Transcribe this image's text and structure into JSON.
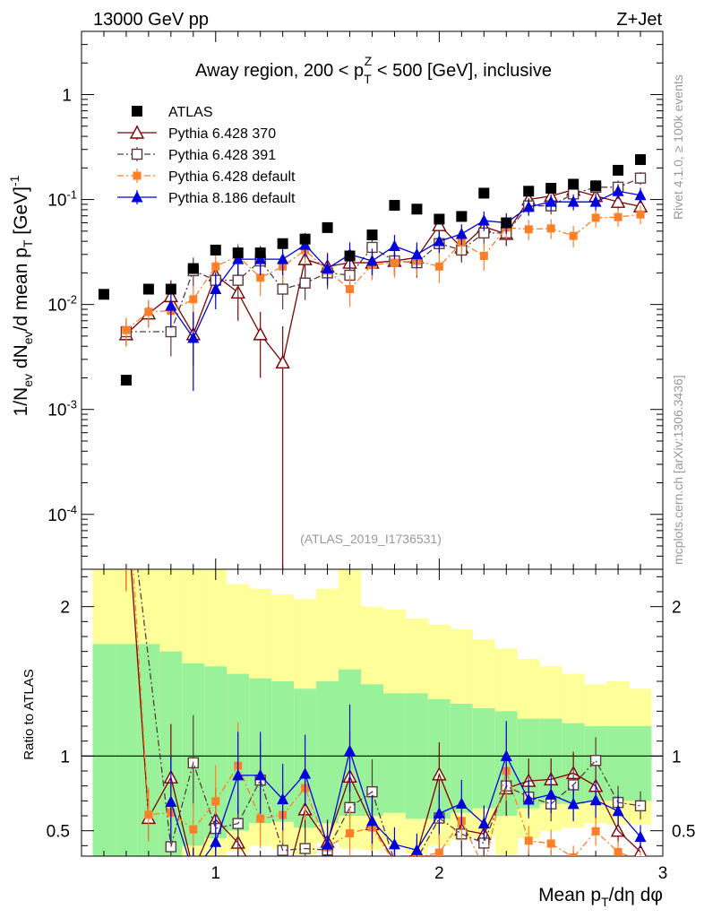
{
  "header": {
    "left_title": "13000 GeV pp",
    "right_title": "Z+Jet",
    "plot_title_main": "Away region, 200 < p",
    "plot_title_sub": "T",
    "plot_title_sup": "Z",
    "plot_title_tail": " < 500 [GeV], inclusive",
    "analysis_id": "(ATLAS_2019_I1736531)"
  },
  "side_labels": {
    "rivet": "Rivet 4.1.0, ≥ 100k events",
    "mcplots": "mcplots.cern.ch [arXiv:1306.3436]"
  },
  "colors": {
    "atlas": "#000000",
    "py6_370": "#800000",
    "py6_391": "#5a3a42",
    "py6_def": "#ff7f27",
    "py8_def": "#0000dd",
    "band_inner": "#99f299",
    "band_outer": "#ffff99"
  },
  "chart_data": {
    "type": "scatter",
    "title": "Away region, 200 < p_T^Z < 500 [GeV], inclusive",
    "xlabel": "Mean p_T/dη dφ",
    "ylabel_main": "1/N_ev dN_ev/d mean p_T [GeV]^-1",
    "ylabel_ratio": "Ratio to ATLAS",
    "xlim": [
      0.4,
      3.0
    ],
    "ylim_main": [
      3e-05,
      4.0
    ],
    "ylim_ratio": [
      0.33,
      2.25
    ],
    "yscale_main": "log",
    "x_ticks": [
      "1",
      "2",
      "3"
    ],
    "y_ticks_main": [
      "10^-4",
      "10^-3",
      "10^-2",
      "10^-1",
      "1"
    ],
    "y_ticks_ratio": [
      "0.5",
      "1",
      "2"
    ],
    "legend_position": "top-left",
    "series": [
      {
        "name": "ATLAS",
        "marker": "square-filled",
        "color_key": "atlas",
        "points": [
          {
            "x": 0.5,
            "y": 0.0125
          },
          {
            "x": 0.6,
            "y": 0.0019
          },
          {
            "x": 0.7,
            "y": 0.014
          },
          {
            "x": 0.8,
            "y": 0.014
          },
          {
            "x": 0.9,
            "y": 0.022
          },
          {
            "x": 1.0,
            "y": 0.033
          },
          {
            "x": 1.1,
            "y": 0.031
          },
          {
            "x": 1.2,
            "y": 0.031
          },
          {
            "x": 1.3,
            "y": 0.038
          },
          {
            "x": 1.4,
            "y": 0.042
          },
          {
            "x": 1.5,
            "y": 0.054
          },
          {
            "x": 1.6,
            "y": 0.029
          },
          {
            "x": 1.7,
            "y": 0.046
          },
          {
            "x": 1.8,
            "y": 0.088
          },
          {
            "x": 1.9,
            "y": 0.081
          },
          {
            "x": 2.0,
            "y": 0.065
          },
          {
            "x": 2.1,
            "y": 0.069
          },
          {
            "x": 2.2,
            "y": 0.115
          },
          {
            "x": 2.3,
            "y": 0.06
          },
          {
            "x": 2.4,
            "y": 0.12
          },
          {
            "x": 2.5,
            "y": 0.128
          },
          {
            "x": 2.6,
            "y": 0.14
          },
          {
            "x": 2.7,
            "y": 0.135
          },
          {
            "x": 2.8,
            "y": 0.19
          },
          {
            "x": 2.9,
            "y": 0.24
          }
        ]
      },
      {
        "name": "Pythia 6.428 370",
        "marker": "triangle-open",
        "line": "solid",
        "color_key": "py6_370",
        "points": [
          {
            "x": 0.6,
            "y": 0.0052,
            "lo": 0.004,
            "hi": 0.0068
          },
          {
            "x": 0.7,
            "y": 0.0082,
            "lo": 0.006,
            "hi": 0.011
          },
          {
            "x": 0.8,
            "y": 0.012,
            "lo": 0.008,
            "hi": 0.017
          },
          {
            "x": 0.9,
            "y": 0.0052,
            "lo": 0.0026,
            "hi": 0.0085
          },
          {
            "x": 1.0,
            "y": 0.019,
            "lo": 0.013,
            "hi": 0.026
          },
          {
            "x": 1.1,
            "y": 0.013,
            "lo": 0.007,
            "hi": 0.02
          },
          {
            "x": 1.2,
            "y": 0.0052,
            "lo": 0.002,
            "hi": 0.0085
          },
          {
            "x": 1.3,
            "y": 0.0028,
            "lo": 3e-05,
            "hi": 0.0062
          },
          {
            "x": 1.4,
            "y": 0.027,
            "lo": 0.018,
            "hi": 0.036
          },
          {
            "x": 1.5,
            "y": 0.023,
            "lo": 0.016,
            "hi": 0.031
          },
          {
            "x": 1.6,
            "y": 0.025,
            "lo": 0.018,
            "hi": 0.034
          },
          {
            "x": 1.7,
            "y": 0.025,
            "lo": 0.018,
            "hi": 0.034
          },
          {
            "x": 1.8,
            "y": 0.026,
            "lo": 0.019,
            "hi": 0.034
          },
          {
            "x": 1.9,
            "y": 0.028,
            "lo": 0.02,
            "hi": 0.036
          },
          {
            "x": 2.0,
            "y": 0.057,
            "lo": 0.044,
            "hi": 0.071
          },
          {
            "x": 2.1,
            "y": 0.035,
            "lo": 0.026,
            "hi": 0.045
          },
          {
            "x": 2.2,
            "y": 0.055,
            "lo": 0.043,
            "hi": 0.068
          },
          {
            "x": 2.3,
            "y": 0.047,
            "lo": 0.036,
            "hi": 0.058
          },
          {
            "x": 2.4,
            "y": 0.1,
            "lo": 0.083,
            "hi": 0.118
          },
          {
            "x": 2.5,
            "y": 0.108,
            "lo": 0.09,
            "hi": 0.126
          },
          {
            "x": 2.6,
            "y": 0.124,
            "lo": 0.104,
            "hi": 0.144
          },
          {
            "x": 2.7,
            "y": 0.108,
            "lo": 0.09,
            "hi": 0.126
          },
          {
            "x": 2.8,
            "y": 0.095,
            "lo": 0.079,
            "hi": 0.112
          },
          {
            "x": 2.9,
            "y": 0.086,
            "lo": 0.07,
            "hi": 0.103
          }
        ]
      },
      {
        "name": "Pythia 6.428 391",
        "marker": "square-open",
        "line": "dashdot",
        "color_key": "py6_391",
        "points": [
          {
            "x": 0.6,
            "y": 0.0055,
            "lo": 0.004,
            "hi": 0.0072
          },
          {
            "x": 0.8,
            "y": 0.0055,
            "lo": 0.0032,
            "hi": 0.008
          },
          {
            "x": 0.9,
            "y": 0.021,
            "lo": 0.015,
            "hi": 0.028
          },
          {
            "x": 1.0,
            "y": 0.017,
            "lo": 0.012,
            "hi": 0.023
          },
          {
            "x": 1.1,
            "y": 0.017,
            "lo": 0.011,
            "hi": 0.024
          },
          {
            "x": 1.2,
            "y": 0.026,
            "lo": 0.019,
            "hi": 0.034
          },
          {
            "x": 1.3,
            "y": 0.014,
            "lo": 0.009,
            "hi": 0.02
          },
          {
            "x": 1.4,
            "y": 0.016,
            "lo": 0.011,
            "hi": 0.022
          },
          {
            "x": 1.5,
            "y": 0.02,
            "lo": 0.014,
            "hi": 0.027
          },
          {
            "x": 1.6,
            "y": 0.019,
            "lo": 0.013,
            "hi": 0.026
          },
          {
            "x": 1.7,
            "y": 0.035,
            "lo": 0.026,
            "hi": 0.045
          },
          {
            "x": 1.8,
            "y": 0.026,
            "lo": 0.019,
            "hi": 0.034
          },
          {
            "x": 1.9,
            "y": 0.025,
            "lo": 0.018,
            "hi": 0.033
          },
          {
            "x": 2.0,
            "y": 0.038,
            "lo": 0.029,
            "hi": 0.048
          },
          {
            "x": 2.1,
            "y": 0.033,
            "lo": 0.025,
            "hi": 0.042
          },
          {
            "x": 2.2,
            "y": 0.048,
            "lo": 0.037,
            "hi": 0.06
          },
          {
            "x": 2.3,
            "y": 0.048,
            "lo": 0.037,
            "hi": 0.06
          },
          {
            "x": 2.4,
            "y": 0.087,
            "lo": 0.072,
            "hi": 0.103
          },
          {
            "x": 2.5,
            "y": 0.087,
            "lo": 0.072,
            "hi": 0.103
          },
          {
            "x": 2.6,
            "y": 0.113,
            "lo": 0.095,
            "hi": 0.132
          },
          {
            "x": 2.7,
            "y": 0.131,
            "lo": 0.111,
            "hi": 0.152
          },
          {
            "x": 2.8,
            "y": 0.131,
            "lo": 0.111,
            "hi": 0.152
          },
          {
            "x": 2.9,
            "y": 0.16,
            "lo": 0.138,
            "hi": 0.183
          }
        ]
      },
      {
        "name": "Pythia 6.428 default",
        "marker": "square-filled-small",
        "line": "dashdot",
        "color_key": "py6_def",
        "points": [
          {
            "x": 0.6,
            "y": 0.0057,
            "lo": 0.004,
            "hi": 0.0075
          },
          {
            "x": 0.7,
            "y": 0.0085,
            "lo": 0.006,
            "hi": 0.011
          },
          {
            "x": 0.8,
            "y": 0.0087,
            "lo": 0.006,
            "hi": 0.012
          },
          {
            "x": 0.9,
            "y": 0.0112,
            "lo": 0.008,
            "hi": 0.015
          },
          {
            "x": 1.0,
            "y": 0.023,
            "lo": 0.016,
            "hi": 0.031
          },
          {
            "x": 1.1,
            "y": 0.029,
            "lo": 0.021,
            "hi": 0.038
          },
          {
            "x": 1.2,
            "y": 0.018,
            "lo": 0.012,
            "hi": 0.025
          },
          {
            "x": 1.3,
            "y": 0.023,
            "lo": 0.016,
            "hi": 0.031
          },
          {
            "x": 1.4,
            "y": 0.033,
            "lo": 0.024,
            "hi": 0.043
          },
          {
            "x": 1.5,
            "y": 0.021,
            "lo": 0.015,
            "hi": 0.028
          },
          {
            "x": 1.6,
            "y": 0.014,
            "lo": 0.0095,
            "hi": 0.019
          },
          {
            "x": 1.7,
            "y": 0.024,
            "lo": 0.017,
            "hi": 0.032
          },
          {
            "x": 1.8,
            "y": 0.025,
            "lo": 0.018,
            "hi": 0.033
          },
          {
            "x": 1.9,
            "y": 0.026,
            "lo": 0.019,
            "hi": 0.034
          },
          {
            "x": 2.0,
            "y": 0.023,
            "lo": 0.016,
            "hi": 0.031
          },
          {
            "x": 2.1,
            "y": 0.039,
            "lo": 0.03,
            "hi": 0.049
          },
          {
            "x": 2.2,
            "y": 0.029,
            "lo": 0.021,
            "hi": 0.038
          },
          {
            "x": 2.3,
            "y": 0.054,
            "lo": 0.042,
            "hi": 0.067
          },
          {
            "x": 2.4,
            "y": 0.052,
            "lo": 0.041,
            "hi": 0.064
          },
          {
            "x": 2.5,
            "y": 0.053,
            "lo": 0.042,
            "hi": 0.065
          },
          {
            "x": 2.6,
            "y": 0.045,
            "lo": 0.035,
            "hi": 0.056
          },
          {
            "x": 2.7,
            "y": 0.067,
            "lo": 0.054,
            "hi": 0.081
          },
          {
            "x": 2.8,
            "y": 0.068,
            "lo": 0.055,
            "hi": 0.082
          },
          {
            "x": 2.9,
            "y": 0.072,
            "lo": 0.058,
            "hi": 0.087
          }
        ]
      },
      {
        "name": "Pythia 8.186 default",
        "marker": "triangle-filled",
        "line": "solid",
        "color_key": "py8_def",
        "points": [
          {
            "x": 0.8,
            "y": 0.0097,
            "lo": 0.006,
            "hi": 0.014
          },
          {
            "x": 0.9,
            "y": 0.0048,
            "lo": 0.0015,
            "hi": 0.0085
          },
          {
            "x": 1.0,
            "y": 0.014,
            "lo": 0.009,
            "hi": 0.02
          },
          {
            "x": 1.1,
            "y": 0.027,
            "lo": 0.019,
            "hi": 0.036
          },
          {
            "x": 1.2,
            "y": 0.027,
            "lo": 0.019,
            "hi": 0.036
          },
          {
            "x": 1.3,
            "y": 0.027,
            "lo": 0.019,
            "hi": 0.036
          },
          {
            "x": 1.4,
            "y": 0.037,
            "lo": 0.028,
            "hi": 0.048
          },
          {
            "x": 1.5,
            "y": 0.022,
            "lo": 0.015,
            "hi": 0.03
          },
          {
            "x": 1.6,
            "y": 0.03,
            "lo": 0.022,
            "hi": 0.039
          },
          {
            "x": 1.7,
            "y": 0.026,
            "lo": 0.019,
            "hi": 0.034
          },
          {
            "x": 1.8,
            "y": 0.036,
            "lo": 0.027,
            "hi": 0.046
          },
          {
            "x": 1.9,
            "y": 0.03,
            "lo": 0.022,
            "hi": 0.039
          },
          {
            "x": 2.0,
            "y": 0.04,
            "lo": 0.031,
            "hi": 0.05
          },
          {
            "x": 2.1,
            "y": 0.047,
            "lo": 0.037,
            "hi": 0.058
          },
          {
            "x": 2.2,
            "y": 0.063,
            "lo": 0.05,
            "hi": 0.077
          },
          {
            "x": 2.3,
            "y": 0.06,
            "lo": 0.047,
            "hi": 0.074
          },
          {
            "x": 2.4,
            "y": 0.085,
            "lo": 0.07,
            "hi": 0.101
          },
          {
            "x": 2.5,
            "y": 0.095,
            "lo": 0.079,
            "hi": 0.112
          },
          {
            "x": 2.6,
            "y": 0.095,
            "lo": 0.079,
            "hi": 0.112
          },
          {
            "x": 2.7,
            "y": 0.095,
            "lo": 0.079,
            "hi": 0.112
          },
          {
            "x": 2.8,
            "y": 0.12,
            "lo": 0.101,
            "hi": 0.14
          },
          {
            "x": 2.9,
            "y": 0.11,
            "lo": 0.092,
            "hi": 0.129
          }
        ]
      }
    ],
    "ratio_band": {
      "x_edges": [
        0.45,
        0.55,
        0.65,
        0.75,
        0.85,
        0.95,
        1.05,
        1.15,
        1.25,
        1.35,
        1.45,
        1.55,
        1.65,
        1.75,
        1.85,
        1.95,
        2.05,
        2.15,
        2.25,
        2.35,
        2.45,
        2.55,
        2.65,
        2.75,
        2.85,
        2.95
      ],
      "outer_lo": [
        0.33,
        0.33,
        0.33,
        0.33,
        0.33,
        0.33,
        0.36,
        0.4,
        0.38,
        0.34,
        0.42,
        0.38,
        0.37,
        0.4,
        0.35,
        0.4,
        0.44,
        0.46,
        0.34,
        0.45,
        0.5,
        0.52,
        0.55,
        0.54,
        0.54
      ],
      "outer_hi": [
        2.25,
        2.25,
        2.25,
        2.25,
        2.25,
        2.25,
        2.15,
        2.12,
        2.08,
        2.05,
        2.12,
        2.25,
        2.0,
        1.98,
        1.92,
        1.88,
        1.85,
        1.78,
        1.72,
        1.65,
        1.6,
        1.55,
        1.48,
        1.5,
        1.45
      ],
      "inner_lo": [
        0.33,
        0.33,
        0.33,
        0.33,
        0.4,
        0.45,
        0.5,
        0.55,
        0.56,
        0.52,
        0.55,
        0.6,
        0.6,
        0.62,
        0.58,
        0.58,
        0.62,
        0.65,
        0.6,
        0.65,
        0.68,
        0.68,
        0.7,
        0.7,
        0.7
      ],
      "inner_hi": [
        1.75,
        1.75,
        1.75,
        1.7,
        1.62,
        1.6,
        1.55,
        1.52,
        1.5,
        1.45,
        1.5,
        1.58,
        1.48,
        1.42,
        1.42,
        1.38,
        1.35,
        1.32,
        1.3,
        1.25,
        1.25,
        1.22,
        1.2,
        1.2,
        1.2
      ]
    }
  }
}
